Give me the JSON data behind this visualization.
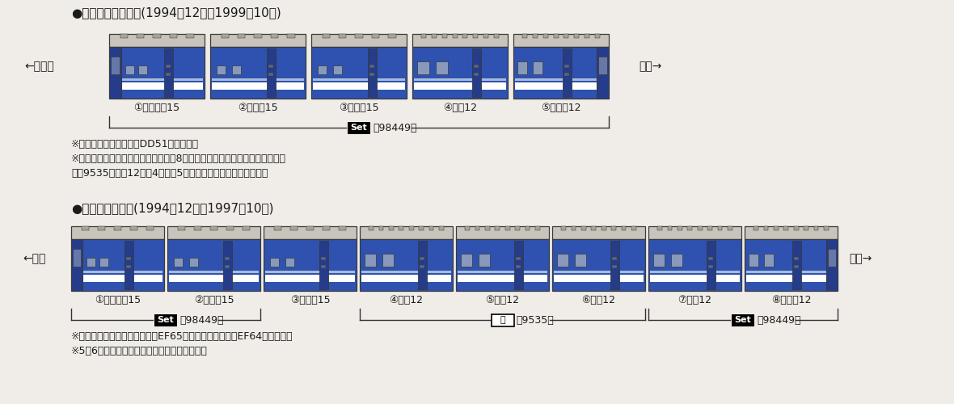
{
  "bg_color": "#f0ede8",
  "title1": "●急行「だいせん」(1994年12月〜1999年10月)",
  "title2": "●急行「ちくま」(1994年12月〜1997年10月)",
  "daisen_left": "←出雲市",
  "daisen_right": "大阪→",
  "chikuma_left": "←大阪",
  "chikuma_right": "長野→",
  "daisen_cars": [
    "①スハネフ15",
    "②オハネ15",
    "③オハネ15",
    "④オハ12",
    "⑤スハフ12"
  ],
  "chikuma_cars": [
    "①スハネフ15",
    "②オハネ15",
    "③オハネ15",
    "④オハ12",
    "⑤オハ12",
    "⑥オハ12",
    "⑦オハ12",
    "⑧スハフ12"
  ],
  "note1_line1": "※けん引機は、全区間でDD51形でした。",
  "note1_line2": "※急行「だいせん」は、多客期に最長8連で運転されました。増結する際は、",
  "note1_line3": "　〈9535〉オハ12形を4号車と5号車の間に連結してください。",
  "note2_line1": "※けん引機は、大阪〜名古屋がEF65形、名古屋〜長野がEF64形でした。",
  "note2_line2": "※5・6号車は、主に多客期に連結されました。",
  "set_label": "Set",
  "tan_label": "単",
  "set98449": "〈98449〉",
  "tan9535": "〈9535〉",
  "blue_body": "#2f52b0",
  "blue_dark_end": "#243c8a",
  "gray_roof": "#c8c4bc",
  "gray_roof_dark": "#a8a49c",
  "white_stripe": "#ffffff",
  "light_blue_stripe": "#b0c0d8",
  "car_border": "#3a3a3a",
  "text_color": "#1a1a1a"
}
